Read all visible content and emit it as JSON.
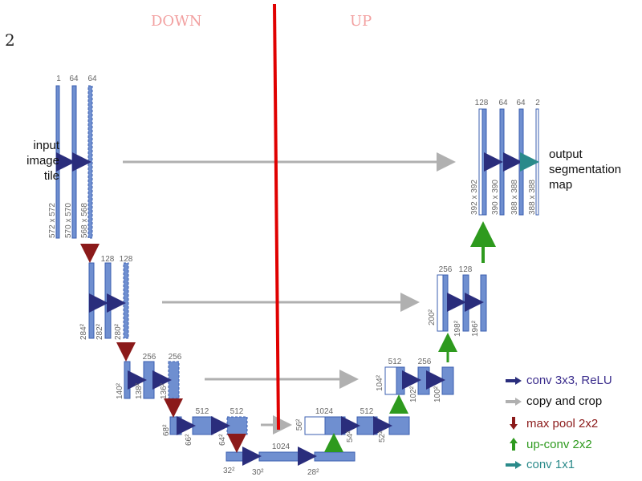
{
  "figure_number": "2",
  "section_labels": {
    "down": "DOWN",
    "up": "UP"
  },
  "input_label": "input\nimage\ntile",
  "output_label": "output\nsegmentation\nmap",
  "colors": {
    "block": "#6f8fd0",
    "block_edge": "#3b5fb0",
    "conv_arrow": "#2a2d7c",
    "copy_arrow": "#b0b0b0",
    "pool_arrow": "#8b1a1a",
    "upconv_arrow": "#2e9a1e",
    "conv1x1_arrow": "#2a8a8a",
    "divider": "#e00000",
    "label_down_up": "#f2a0a0"
  },
  "encoder": [
    {
      "channels": [
        "1",
        "64",
        "64"
      ],
      "sizes": [
        "572 x 572",
        "570 x 570",
        "568 x 568"
      ]
    },
    {
      "channels": [
        "",
        "128",
        "128"
      ],
      "sizes": [
        "284²",
        "282²",
        "280²"
      ]
    },
    {
      "channels": [
        "",
        "256",
        "256"
      ],
      "sizes": [
        "140²",
        "138²",
        "136²"
      ]
    },
    {
      "channels": [
        "",
        "512",
        "512"
      ],
      "sizes": [
        "68²",
        "66²",
        "64²"
      ]
    },
    {
      "channels": [
        "",
        "1024",
        ""
      ],
      "sizes": [
        "32²",
        "30²",
        "28²"
      ]
    }
  ],
  "decoder": [
    {
      "channels": [
        "1024",
        "512",
        ""
      ],
      "sizes": [
        "56²",
        "54²",
        "52²"
      ]
    },
    {
      "channels": [
        "512",
        "256",
        ""
      ],
      "sizes": [
        "104²",
        "102²",
        "100²"
      ]
    },
    {
      "channels": [
        "256",
        "128",
        ""
      ],
      "sizes": [
        "200²",
        "198²",
        "196²"
      ]
    },
    {
      "channels": [
        "128",
        "64",
        "64",
        "2"
      ],
      "sizes": [
        "392 x 392",
        "390 x 390",
        "388 x 388",
        "388 x 388"
      ]
    }
  ],
  "legend": [
    {
      "icon": "conv-arrow-icon",
      "label": "conv 3x3, ReLU",
      "color": "#3a2c8c"
    },
    {
      "icon": "copy-arrow-icon",
      "label": "copy and crop",
      "color": "#111111"
    },
    {
      "icon": "pool-arrow-icon",
      "label": "max pool 2x2",
      "color": "#8b1a1a"
    },
    {
      "icon": "upconv-arrow-icon",
      "label": "up-conv 2x2",
      "color": "#2e9a1e"
    },
    {
      "icon": "conv1x1-arrow-icon",
      "label": "conv 1x1",
      "color": "#2a8a8a"
    }
  ]
}
